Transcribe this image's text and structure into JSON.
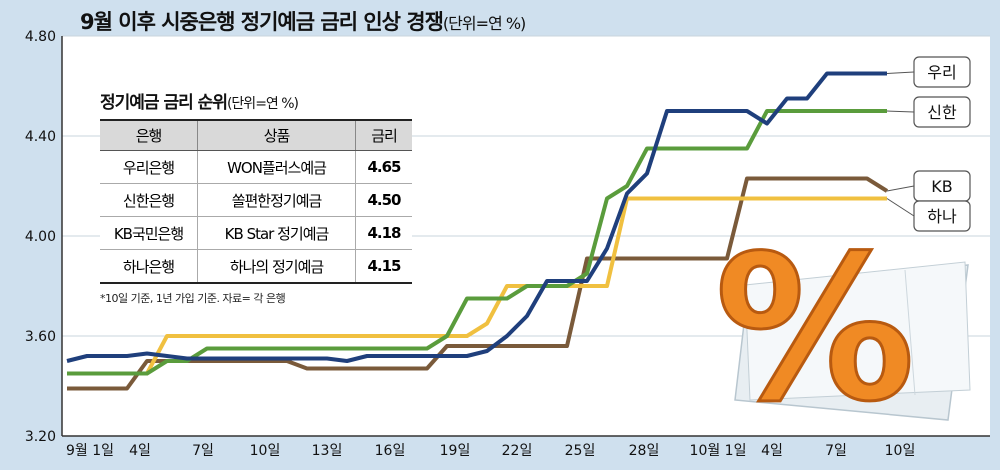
{
  "header": {
    "title": "9월 이후 시중은행 정기예금 금리 인상 경쟁",
    "unit": "(단위=연 %)"
  },
  "chart_data": {
    "type": "line",
    "ylim": [
      3.2,
      4.8
    ],
    "yticks": [
      "3.20",
      "3.60",
      "4.00",
      "4.40",
      "4.80"
    ],
    "x_tick_labels": [
      "9월 1일",
      "4일",
      "7일",
      "10일",
      "13일",
      "16일",
      "19일",
      "22일",
      "25일",
      "28일",
      "10월 1일",
      "4일",
      "7일",
      "10일"
    ],
    "series": [
      {
        "name": "우리",
        "color": "#1f3f7c",
        "values": [
          3.5,
          3.52,
          3.52,
          3.52,
          3.53,
          3.52,
          3.51,
          3.51,
          3.51,
          3.51,
          3.51,
          3.51,
          3.51,
          3.51,
          3.5,
          3.52,
          3.52,
          3.52,
          3.52,
          3.52,
          3.52,
          3.54,
          3.6,
          3.68,
          3.82,
          3.82,
          3.82,
          3.95,
          4.17,
          4.25,
          4.5,
          4.5,
          4.5,
          4.5,
          4.5,
          4.45,
          4.55,
          4.55,
          4.65,
          4.65,
          4.65,
          4.65
        ]
      },
      {
        "name": "신한",
        "color": "#5a9c3c",
        "values": [
          3.45,
          3.45,
          3.45,
          3.45,
          3.45,
          3.5,
          3.5,
          3.55,
          3.55,
          3.55,
          3.55,
          3.55,
          3.55,
          3.55,
          3.55,
          3.55,
          3.55,
          3.55,
          3.55,
          3.6,
          3.75,
          3.75,
          3.75,
          3.8,
          3.8,
          3.8,
          3.85,
          4.15,
          4.2,
          4.35,
          4.35,
          4.35,
          4.35,
          4.35,
          4.35,
          4.5,
          4.5,
          4.5,
          4.5,
          4.5,
          4.5,
          4.5
        ]
      },
      {
        "name": "KB",
        "color": "#7a5a3a",
        "values": [
          3.39,
          3.39,
          3.39,
          3.39,
          3.5,
          3.5,
          3.5,
          3.5,
          3.5,
          3.5,
          3.5,
          3.5,
          3.47,
          3.47,
          3.47,
          3.47,
          3.47,
          3.47,
          3.47,
          3.56,
          3.56,
          3.56,
          3.56,
          3.56,
          3.56,
          3.56,
          3.91,
          3.91,
          3.91,
          3.91,
          3.91,
          3.91,
          3.91,
          3.91,
          4.23,
          4.23,
          4.23,
          4.23,
          4.23,
          4.23,
          4.23,
          4.18
        ]
      },
      {
        "name": "하나",
        "color": "#f0c040",
        "values": [
          3.45,
          3.45,
          3.45,
          3.45,
          3.45,
          3.6,
          3.6,
          3.6,
          3.6,
          3.6,
          3.6,
          3.6,
          3.6,
          3.6,
          3.6,
          3.6,
          3.6,
          3.6,
          3.6,
          3.6,
          3.6,
          3.65,
          3.8,
          3.8,
          3.8,
          3.8,
          3.8,
          3.8,
          4.15,
          4.15,
          4.15,
          4.15,
          4.15,
          4.15,
          4.15,
          4.15,
          4.15,
          4.15,
          4.15,
          4.15,
          4.15,
          4.15
        ]
      }
    ]
  },
  "rank_table": {
    "title": "정기예금 금리 순위",
    "unit": "(단위=연 %)",
    "headers": [
      "은행",
      "상품",
      "금리"
    ],
    "rows": [
      [
        "우리은행",
        "WON플러스예금",
        "4.65"
      ],
      [
        "신한은행",
        "쏠편한정기예금",
        "4.50"
      ],
      [
        "KB국민은행",
        "KB Star 정기예금",
        "4.18"
      ],
      [
        "하나은행",
        "하나의 정기예금",
        "4.15"
      ]
    ],
    "footnote": "*10일 기준, 1년 가입 기준. 자료= 각 은행"
  },
  "illustration": {
    "icon": "percent-icon",
    "symbol": "%",
    "color": "#f08a24"
  }
}
